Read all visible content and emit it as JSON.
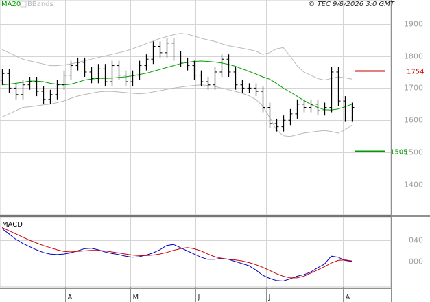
{
  "chart_data": [
    {
      "type": "ohlc",
      "source": "© TEC 9/8/2026 3:0 GMT",
      "xlim": [
        -0.3,
        56.7
      ],
      "ylim": [
        1306,
        1974
      ],
      "yticks": [
        1400,
        1500,
        1600,
        1700,
        1800,
        1900
      ],
      "grid": true,
      "bar_color": "#000000",
      "open": [
        1725,
        1745,
        1700,
        1680,
        1710,
        1720,
        1690,
        1665,
        1680,
        1710,
        1740,
        1770,
        1780,
        1750,
        1730,
        1760,
        1720,
        1770,
        1740,
        1720,
        1740,
        1770,
        1790,
        1830,
        1810,
        1840,
        1800,
        1780,
        1770,
        1740,
        1720,
        1710,
        1750,
        1790,
        1750,
        1710,
        1700,
        1700,
        1690,
        1640,
        1590,
        1580,
        1600,
        1620,
        1650,
        1640,
        1650,
        1630,
        1640,
        1750,
        1660,
        1610
      ],
      "high": [
        1760,
        1760,
        1715,
        1725,
        1735,
        1735,
        1705,
        1695,
        1725,
        1755,
        1785,
        1795,
        1795,
        1765,
        1775,
        1775,
        1785,
        1785,
        1755,
        1755,
        1785,
        1805,
        1845,
        1845,
        1855,
        1855,
        1815,
        1795,
        1785,
        1755,
        1735,
        1765,
        1805,
        1805,
        1765,
        1725,
        1715,
        1715,
        1705,
        1655,
        1605,
        1615,
        1635,
        1665,
        1665,
        1665,
        1665,
        1655,
        1765,
        1765,
        1675,
        1655
      ],
      "low": [
        1710,
        1685,
        1665,
        1665,
        1695,
        1675,
        1650,
        1650,
        1665,
        1695,
        1725,
        1755,
        1735,
        1715,
        1715,
        1705,
        1705,
        1725,
        1705,
        1705,
        1725,
        1755,
        1775,
        1795,
        1795,
        1785,
        1765,
        1755,
        1725,
        1705,
        1695,
        1695,
        1735,
        1735,
        1695,
        1685,
        1685,
        1675,
        1625,
        1575,
        1565,
        1565,
        1585,
        1605,
        1625,
        1625,
        1615,
        1615,
        1625,
        1645,
        1595,
        1595
      ],
      "close": [
        1745,
        1700,
        1680,
        1710,
        1720,
        1690,
        1665,
        1680,
        1710,
        1740,
        1770,
        1780,
        1750,
        1730,
        1760,
        1720,
        1770,
        1740,
        1720,
        1740,
        1770,
        1790,
        1830,
        1810,
        1840,
        1800,
        1780,
        1770,
        1740,
        1720,
        1710,
        1750,
        1790,
        1750,
        1710,
        1700,
        1700,
        1690,
        1640,
        1590,
        1580,
        1600,
        1620,
        1650,
        1640,
        1650,
        1630,
        1640,
        1750,
        1660,
        1610,
        1640
      ],
      "series": [
        {
          "name": "MA20",
          "color": "#00a000",
          "values": [
            1710,
            1712,
            1715,
            1718,
            1722,
            1722,
            1720,
            1715,
            1712,
            1710,
            1712,
            1718,
            1725,
            1728,
            1730,
            1730,
            1731,
            1733,
            1735,
            1738,
            1742,
            1746,
            1752,
            1758,
            1764,
            1770,
            1776,
            1780,
            1783,
            1784,
            1783,
            1781,
            1778,
            1774,
            1768,
            1760,
            1752,
            1744,
            1735,
            1728,
            1715,
            1700,
            1688,
            1675,
            1662,
            1650,
            1640,
            1633,
            1632,
            1635,
            1642,
            1650
          ]
        }
      ],
      "bands": {
        "name": "BBands",
        "color": "#b8b8b8",
        "upper": [
          1820,
          1810,
          1800,
          1790,
          1785,
          1780,
          1775,
          1770,
          1770,
          1772,
          1775,
          1780,
          1785,
          1790,
          1795,
          1800,
          1805,
          1810,
          1815,
          1822,
          1830,
          1838,
          1846,
          1854,
          1860,
          1866,
          1870,
          1868,
          1862,
          1855,
          1850,
          1845,
          1838,
          1832,
          1828,
          1824,
          1820,
          1815,
          1805,
          1810,
          1822,
          1826,
          1800,
          1770,
          1750,
          1740,
          1730,
          1725,
          1730,
          1735,
          1732,
          1728
        ],
        "lower": [
          1610,
          1620,
          1630,
          1640,
          1642,
          1645,
          1648,
          1650,
          1655,
          1660,
          1668,
          1675,
          1680,
          1684,
          1688,
          1690,
          1690,
          1688,
          1686,
          1684,
          1682,
          1684,
          1688,
          1692,
          1696,
          1700,
          1703,
          1706,
          1708,
          1710,
          1708,
          1705,
          1700,
          1695,
          1690,
          1684,
          1676,
          1665,
          1645,
          1610,
          1570,
          1552,
          1550,
          1555,
          1560,
          1563,
          1566,
          1568,
          1565,
          1560,
          1570,
          1585
        ]
      },
      "levels": [
        {
          "value": 1754,
          "color": "#cc0000"
        },
        {
          "value": 1505,
          "color": "#009900"
        }
      ]
    },
    {
      "type": "line",
      "title": "MACD",
      "xlim": [
        -0.3,
        56.7
      ],
      "ylim": [
        -48,
        84
      ],
      "yticks": [
        {
          "value": 0,
          "label": "000"
        },
        {
          "value": 40,
          "label": "040"
        }
      ],
      "xticks": [
        {
          "value": 9.2,
          "label": "A"
        },
        {
          "value": 18.7,
          "label": "M"
        },
        {
          "value": 28.2,
          "label": "J"
        },
        {
          "value": 38.5,
          "label": "J"
        },
        {
          "value": 49.7,
          "label": "A"
        }
      ],
      "grid": true,
      "series": [
        {
          "color": "#0000c0",
          "values": [
            62,
            52,
            42,
            34,
            28,
            22,
            17,
            14,
            13,
            14,
            16,
            20,
            24,
            25,
            22,
            18,
            15,
            13,
            10,
            8,
            9,
            12,
            16,
            22,
            30,
            32,
            26,
            20,
            14,
            8,
            4,
            4,
            6,
            4,
            0,
            -4,
            -8,
            -16,
            -26,
            -32,
            -36,
            -37,
            -33,
            -28,
            -25,
            -20,
            -12,
            -5,
            10,
            8,
            2,
            0
          ]
        },
        {
          "color": "#cc0000",
          "values": [
            64,
            58,
            52,
            46,
            40,
            35,
            30,
            26,
            22,
            19,
            18,
            19,
            20,
            21,
            21,
            20,
            18,
            16,
            14,
            12,
            11,
            11,
            12,
            14,
            17,
            21,
            24,
            26,
            24,
            20,
            14,
            9,
            6,
            4,
            3,
            1,
            -2,
            -6,
            -11,
            -17,
            -23,
            -28,
            -31,
            -31,
            -28,
            -22,
            -16,
            -10,
            -3,
            2,
            3,
            1
          ]
        }
      ]
    }
  ]
}
